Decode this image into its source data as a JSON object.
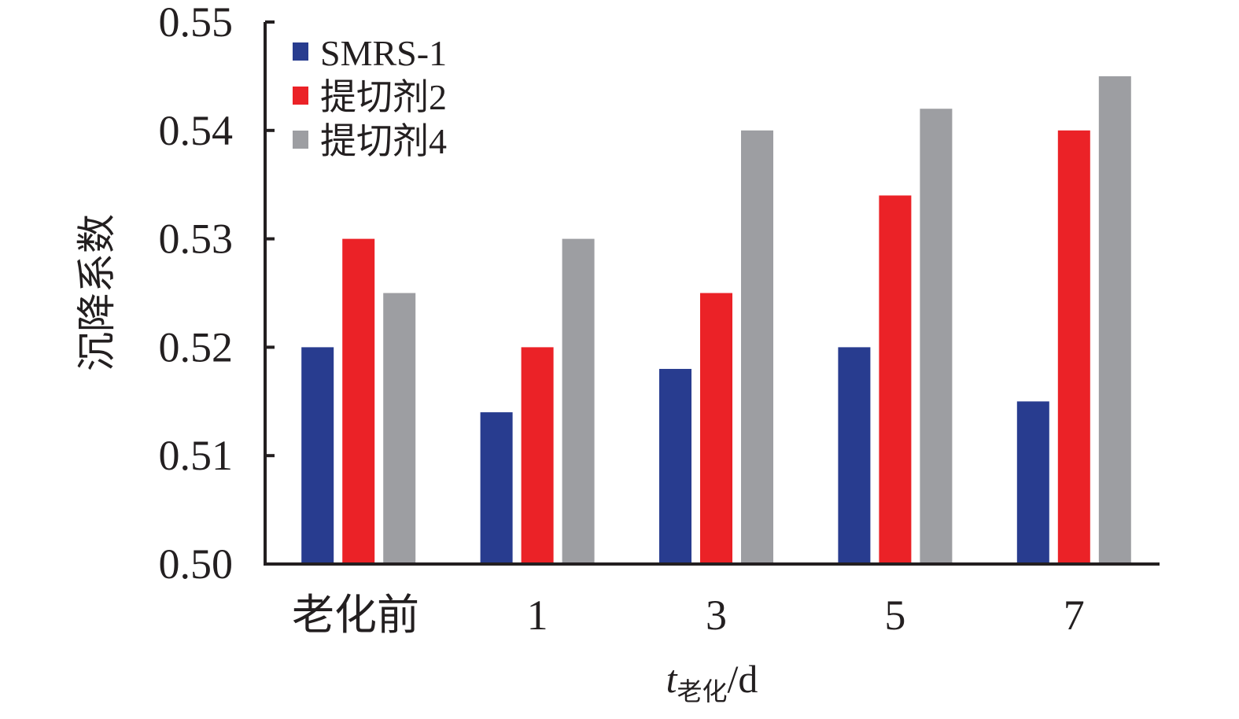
{
  "chart_data": {
    "type": "bar",
    "categories": [
      "老化前",
      "1",
      "3",
      "5",
      "7"
    ],
    "series": [
      {
        "name": "SMRS-1",
        "color": "#283c8f",
        "values": [
          0.52,
          0.514,
          0.518,
          0.52,
          0.515
        ]
      },
      {
        "name": "提切剂2",
        "color": "#eb2227",
        "values": [
          0.53,
          0.52,
          0.525,
          0.534,
          0.54
        ]
      },
      {
        "name": "提切剂4",
        "color": "#9d9ea2",
        "values": [
          0.525,
          0.53,
          0.54,
          0.542,
          0.545
        ]
      }
    ],
    "ylim": [
      0.5,
      0.55
    ],
    "yticks": [
      "0.50",
      "0.51",
      "0.52",
      "0.53",
      "0.54",
      "0.55"
    ],
    "ylabel": "沉降系数",
    "xlabel": {
      "var": "t",
      "sub": "老化",
      "unit": "/d"
    },
    "legend": "top-left",
    "grid": false
  }
}
